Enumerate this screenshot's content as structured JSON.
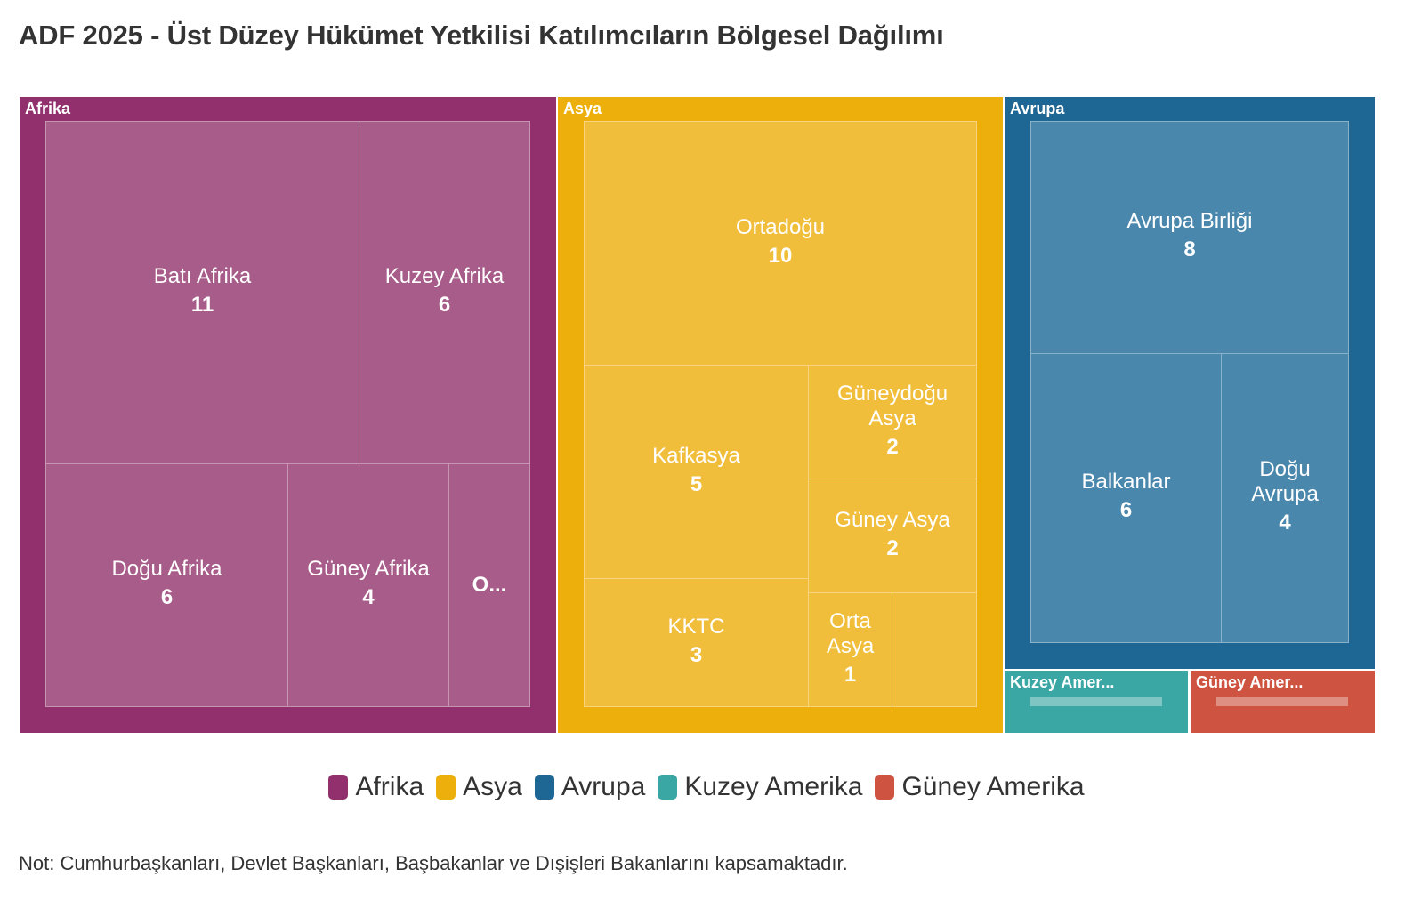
{
  "title": "ADF 2025 - Üst Düzey Hükümet Yetkilisi Katılımcıların Bölgesel Dağılımı",
  "note": "Not: Cumhurbaşkanları, Devlet Başkanları, Başbakanlar ve Dışişleri Bakanlarını kapsamaktadır.",
  "colors": {
    "afrika": "#92306e",
    "afrika_leaf": "#a75c89",
    "asya": "#ecaf0b",
    "asya_leaf": "#f1be3c",
    "avrupa": "#1e6693",
    "avrupa_leaf": "#4a87ac",
    "kuzey_amerika": "#3aa7a5",
    "guney_amerika": "#ce5340"
  },
  "chart_data": {
    "type": "treemap",
    "regions": [
      {
        "name": "Afrika",
        "label": "Afrika",
        "children": [
          {
            "name": "Batı Afrika",
            "label": "Batı Afrika",
            "value": 11
          },
          {
            "name": "Kuzey Afrika",
            "label": "Kuzey Afrika",
            "value": 6
          },
          {
            "name": "Doğu Afrika",
            "label": "Doğu Afrika",
            "value": 6
          },
          {
            "name": "Güney Afrika",
            "label": "Güney Afrika",
            "value": 4
          },
          {
            "name": "O...",
            "label": "O...",
            "value": null
          }
        ]
      },
      {
        "name": "Asya",
        "label": "Asya",
        "children": [
          {
            "name": "Ortadoğu",
            "label": "Ortadoğu",
            "value": 10
          },
          {
            "name": "Kafkasya",
            "label": "Kafkasya",
            "value": 5
          },
          {
            "name": "Güneydoğu Asya",
            "label": "Güneydoğu Asya",
            "value": 2
          },
          {
            "name": "Güney Asya",
            "label": "Güney Asya",
            "value": 2
          },
          {
            "name": "KKTC",
            "label": "KKTC",
            "value": 3
          },
          {
            "name": "Orta Asya",
            "label": "Orta Asya",
            "value": 1
          },
          {
            "name": "",
            "label": "",
            "value": null
          }
        ]
      },
      {
        "name": "Avrupa",
        "label": "Avrupa",
        "children": [
          {
            "name": "Avrupa Birliği",
            "label": "Avrupa Birliği",
            "value": 8
          },
          {
            "name": "Balkanlar",
            "label": "Balkanlar",
            "value": 6
          },
          {
            "name": "Doğu Avrupa",
            "label": "Doğu Avrupa",
            "value": 4
          }
        ]
      },
      {
        "name": "Kuzey Amerika",
        "label": "Kuzey Amer...",
        "children": []
      },
      {
        "name": "Güney Amerika",
        "label": "Güney Amer...",
        "children": []
      }
    ],
    "legend": [
      "Afrika",
      "Asya",
      "Avrupa",
      "Kuzey Amerika",
      "Güney Amerika"
    ],
    "legend_position": "bottom"
  }
}
